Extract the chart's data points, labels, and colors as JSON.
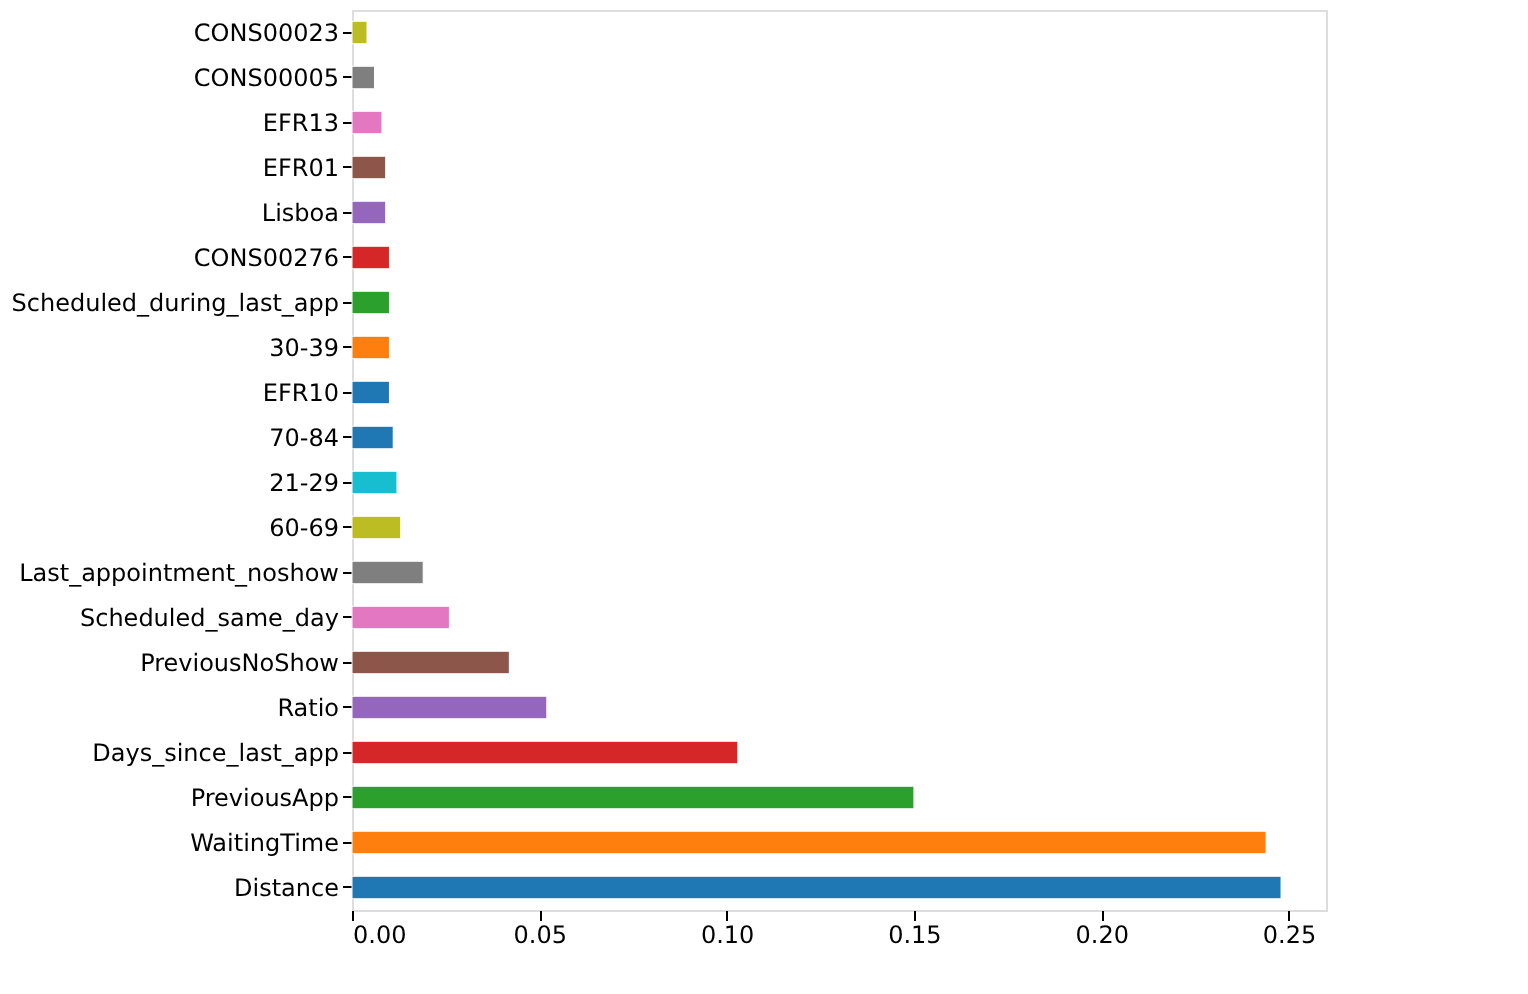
{
  "chart_data": {
    "type": "bar",
    "orientation": "horizontal",
    "categories": [
      "CONS00023",
      "CONS00005",
      "EFR13",
      "EFR01",
      "Lisboa",
      "CONS00276",
      "Scheduled_during_last_app",
      "30-39",
      "EFR10",
      "70-84",
      "21-29",
      "60-69",
      "Last_appointment_noshow",
      "Scheduled_same_day",
      "PreviousNoShow",
      "Ratio",
      "Days_since_last_app",
      "PreviousApp",
      "WaitingTime",
      "Distance"
    ],
    "values": [
      0.004,
      0.006,
      0.008,
      0.009,
      0.009,
      0.01,
      0.01,
      0.01,
      0.01,
      0.011,
      0.012,
      0.013,
      0.019,
      0.026,
      0.042,
      0.052,
      0.103,
      0.15,
      0.244,
      0.248
    ],
    "colors": [
      "#bcbd22",
      "#7f7f7f",
      "#e377c2",
      "#8c564b",
      "#9467bd",
      "#d62728",
      "#2ca02c",
      "#ff7f0e",
      "#1f77b4",
      "#1f77b4",
      "#17becf",
      "#bcbd22",
      "#7f7f7f",
      "#e377c2",
      "#8c564b",
      "#9467bd",
      "#d62728",
      "#2ca02c",
      "#ff7f0e",
      "#1f77b4"
    ],
    "xlim": [
      0,
      0.26
    ],
    "xticks": [
      {
        "value": 0,
        "label": "0.00"
      },
      {
        "value": 0.05,
        "label": "0.05"
      },
      {
        "value": 0.1,
        "label": "0.10"
      },
      {
        "value": 0.15,
        "label": "0.15"
      },
      {
        "value": 0.2,
        "label": "0.20"
      },
      {
        "value": 0.25,
        "label": "0.25"
      }
    ],
    "grid": false
  }
}
